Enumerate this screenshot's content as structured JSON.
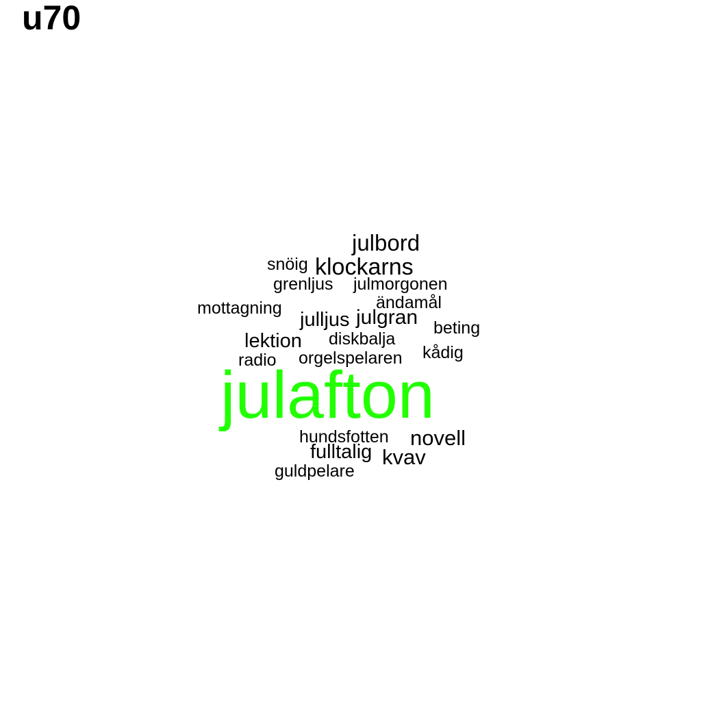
{
  "title": "u70",
  "colors": {
    "default_word": "#000000",
    "highlight_word": "#22ff00"
  },
  "words": [
    {
      "text": "julafton",
      "highlight": true
    },
    {
      "text": "julbord"
    },
    {
      "text": "snöig"
    },
    {
      "text": "klockarns"
    },
    {
      "text": "grenljus"
    },
    {
      "text": "julmorgonen"
    },
    {
      "text": "ändamål"
    },
    {
      "text": "mottagning"
    },
    {
      "text": "julljus"
    },
    {
      "text": "julgran"
    },
    {
      "text": "beting"
    },
    {
      "text": "lektion"
    },
    {
      "text": "diskbalja"
    },
    {
      "text": "radio"
    },
    {
      "text": "orgelspelaren"
    },
    {
      "text": "kådig"
    },
    {
      "text": "hundsfotten"
    },
    {
      "text": "novell"
    },
    {
      "text": "fulltalig"
    },
    {
      "text": "kvav"
    },
    {
      "text": "guldpelare"
    }
  ]
}
